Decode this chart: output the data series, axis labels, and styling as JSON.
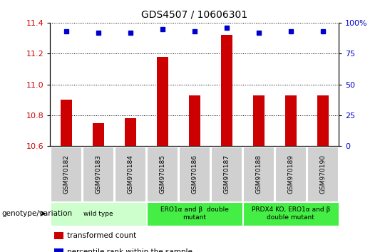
{
  "title": "GDS4507 / 10606301",
  "samples": [
    "GSM970182",
    "GSM970183",
    "GSM970184",
    "GSM970185",
    "GSM970186",
    "GSM970187",
    "GSM970188",
    "GSM970189",
    "GSM970190"
  ],
  "bar_values": [
    10.9,
    10.75,
    10.78,
    11.18,
    10.93,
    11.32,
    10.93,
    10.93,
    10.93
  ],
  "percentile_values": [
    93,
    92,
    92,
    95,
    93,
    96,
    92,
    93,
    93
  ],
  "ylim_left": [
    10.6,
    11.4
  ],
  "ylim_right": [
    0,
    100
  ],
  "yticks_left": [
    10.6,
    10.8,
    11.0,
    11.2,
    11.4
  ],
  "yticks_right": [
    0,
    25,
    50,
    75,
    100
  ],
  "bar_color": "#cc0000",
  "dot_color": "#0000cc",
  "groups": [
    {
      "label": "wild type",
      "start": 0,
      "end": 2,
      "color": "#ccffcc"
    },
    {
      "label": "ERO1α and β  double\nmutant",
      "start": 3,
      "end": 5,
      "color": "#44ee44"
    },
    {
      "label": "PRDX4 KO, ERO1α and β\ndouble mutant",
      "start": 6,
      "end": 8,
      "color": "#44ee44"
    }
  ],
  "legend_items": [
    {
      "color": "#cc0000",
      "label": "transformed count"
    },
    {
      "color": "#0000cc",
      "label": "percentile rank within the sample"
    }
  ],
  "genotype_label": "genotype/variation",
  "tick_label_color_left": "#cc0000",
  "tick_label_color_right": "#0000cc",
  "sample_box_color": "#d0d0d0",
  "title_fontsize": 10,
  "bar_width": 0.35
}
